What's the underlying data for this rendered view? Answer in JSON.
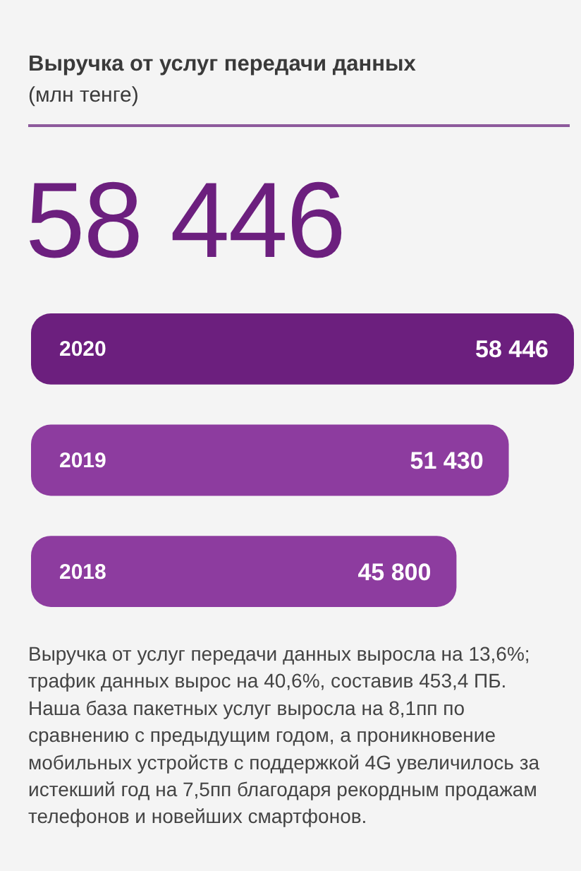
{
  "chart_data": {
    "type": "bar",
    "orientation": "horizontal",
    "title": "Выручка от услуг передачи данных",
    "subtitle": "(млн тенге)",
    "categories": [
      "2020",
      "2019",
      "2018"
    ],
    "values": [
      58446,
      51430,
      45800
    ],
    "value_labels": [
      "58 446",
      "51 430",
      "45 800"
    ],
    "colors": [
      "#6c1f7e",
      "#8d3c9f",
      "#8d3c9f"
    ],
    "annotations": [
      "58 446",
      "Выручка от услуг передачи данных выросла на 13,6%; трафик данных вырос на 40,6%, составив 453,4 ПБ. Наша база пакетных услуг выросла на 8,1пп по сравнению с предыдущим годом, а проникновение мобильных устройств с поддержкой 4G увеличилось за истекший год на 7,5пп благодаря рекордным продажам телефонов и новейших смартфонов."
    ]
  }
}
